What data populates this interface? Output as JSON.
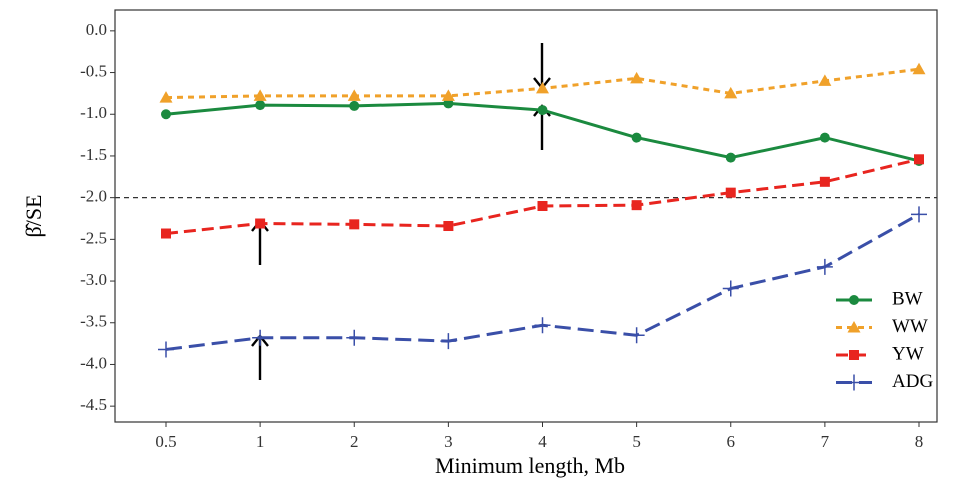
{
  "chart_data": {
    "type": "line",
    "y_label": "β̂/SE",
    "x_label": "Minimum length, Mb",
    "categories": [
      "0.5",
      "1",
      "2",
      "3",
      "4",
      "5",
      "6",
      "7",
      "8"
    ],
    "series": [
      {
        "name": "BW",
        "color": "#1b8a3f",
        "dash": "solid",
        "marker": "circle",
        "values": [
          -1.0,
          -0.89,
          -0.9,
          -0.87,
          -0.95,
          -1.28,
          -1.52,
          -1.28,
          -1.56
        ]
      },
      {
        "name": "WW",
        "color": "#f0a12a",
        "dash": "dotted",
        "marker": "triangle",
        "values": [
          -0.8,
          -0.78,
          -0.78,
          -0.78,
          -0.69,
          -0.57,
          -0.75,
          -0.6,
          -0.46
        ]
      },
      {
        "name": "YW",
        "color": "#e8251f",
        "dash": "dashed",
        "marker": "square",
        "values": [
          -2.43,
          -2.31,
          -2.32,
          -2.34,
          -2.1,
          -2.09,
          -1.94,
          -1.81,
          -1.54
        ]
      },
      {
        "name": "ADG",
        "color": "#3a4fa8",
        "dash": "longdash",
        "marker": "plus",
        "values": [
          -3.82,
          -3.68,
          -3.68,
          -3.72,
          -3.53,
          -3.65,
          -3.09,
          -2.83,
          -2.2
        ]
      }
    ],
    "reference_line": -2.0,
    "ylim": [
      -4.69,
      0.25
    ],
    "yticks": [
      {
        "value": 0,
        "label": "0.0"
      },
      -0.5,
      {
        "value": -1,
        "label": "-1.0"
      },
      -1.5,
      {
        "value": -2,
        "label": "-2.0"
      },
      -2.5,
      {
        "value": -3,
        "label": "-3.0"
      },
      -3.5,
      {
        "value": -4,
        "label": "-4.0"
      },
      -4.5
    ],
    "legend_position": "bottom-right"
  }
}
